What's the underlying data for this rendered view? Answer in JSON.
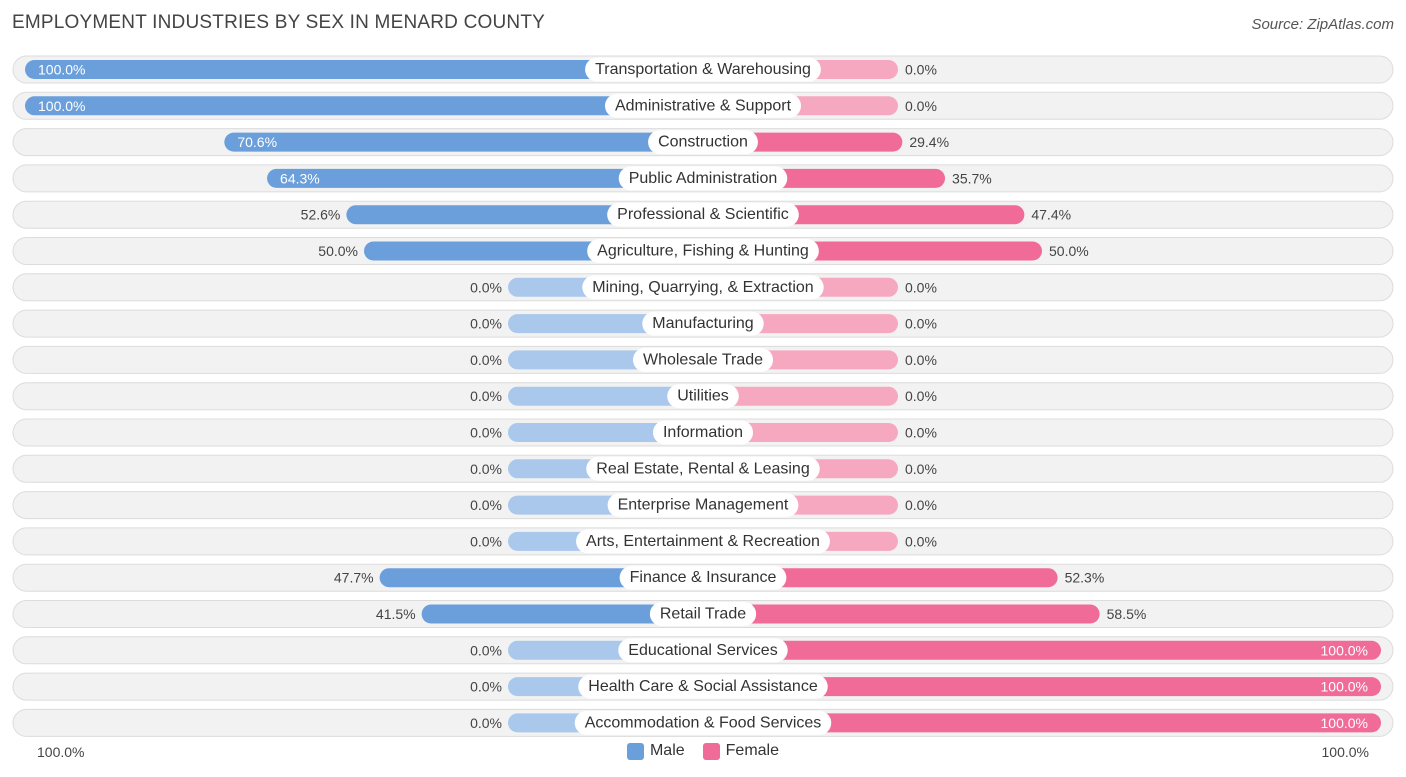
{
  "header": {
    "title": "EMPLOYMENT INDUSTRIES BY SEX IN MENARD COUNTY",
    "source": "Source: ZipAtlas.com"
  },
  "axis": {
    "left_label": "100.0%",
    "right_label": "100.0%"
  },
  "legend": {
    "male": "Male",
    "female": "Female"
  },
  "colors": {
    "male_strong": "#6a9fdc",
    "male_light": "#aac8ec",
    "female_strong": "#f06b97",
    "female_light": "#f6a8c1",
    "row_bg": "#f2f2f2",
    "row_border": "#dcdcdc"
  },
  "chart_data": {
    "type": "bar",
    "title": "EMPLOYMENT INDUSTRIES BY SEX IN MENARD COUNTY",
    "orientation": "horizontal-diverging",
    "xlim": [
      -100,
      100
    ],
    "categories": [
      "Transportation & Warehousing",
      "Administrative & Support",
      "Construction",
      "Public Administration",
      "Professional & Scientific",
      "Agriculture, Fishing & Hunting",
      "Mining, Quarrying, & Extraction",
      "Manufacturing",
      "Wholesale Trade",
      "Utilities",
      "Information",
      "Real Estate, Rental & Leasing",
      "Enterprise Management",
      "Arts, Entertainment & Recreation",
      "Finance & Insurance",
      "Retail Trade",
      "Educational Services",
      "Health Care & Social Assistance",
      "Accommodation & Food Services"
    ],
    "series": [
      {
        "name": "Male",
        "values": [
          100.0,
          100.0,
          70.6,
          64.3,
          52.6,
          50.0,
          0.0,
          0.0,
          0.0,
          0.0,
          0.0,
          0.0,
          0.0,
          0.0,
          47.7,
          41.5,
          0.0,
          0.0,
          0.0
        ],
        "labels": [
          "100.0%",
          "100.0%",
          "70.6%",
          "64.3%",
          "52.6%",
          "50.0%",
          "0.0%",
          "0.0%",
          "0.0%",
          "0.0%",
          "0.0%",
          "0.0%",
          "0.0%",
          "0.0%",
          "47.7%",
          "41.5%",
          "0.0%",
          "0.0%",
          "0.0%"
        ]
      },
      {
        "name": "Female",
        "values": [
          0.0,
          0.0,
          29.4,
          35.7,
          47.4,
          50.0,
          0.0,
          0.0,
          0.0,
          0.0,
          0.0,
          0.0,
          0.0,
          0.0,
          52.3,
          58.5,
          100.0,
          100.0,
          100.0
        ],
        "labels": [
          "0.0%",
          "0.0%",
          "29.4%",
          "35.7%",
          "47.4%",
          "50.0%",
          "0.0%",
          "0.0%",
          "0.0%",
          "0.0%",
          "0.0%",
          "0.0%",
          "0.0%",
          "0.0%",
          "52.3%",
          "58.5%",
          "100.0%",
          "100.0%",
          "100.0%"
        ]
      }
    ]
  }
}
